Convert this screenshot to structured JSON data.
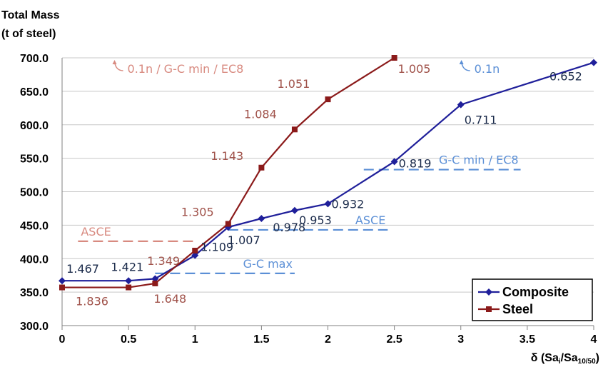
{
  "colors": {
    "composite": "#1f1f9a",
    "steel": "#8b1a1a",
    "composite_label": "#1a2a4a",
    "steel_label": "#a0524a",
    "composite_annotation": "#5b8fd6",
    "steel_annotation": "#d88a80",
    "grid": "#c8c8c8"
  },
  "chart_data": {
    "type": "line",
    "ylabel_line1": "Total Mass",
    "ylabel_line2": "(t of steel)",
    "xlabel": "δ (Sa",
    "xlabel_sub1": "i",
    "xlabel_mid": "/Sa",
    "xlabel_sub2": "10/50",
    "xlabel_end": ")",
    "xlim": [
      0,
      4
    ],
    "ylim": [
      300,
      700
    ],
    "grid": true,
    "legend_position": "bottom-right",
    "x_ticks": [
      "0",
      "0.5",
      "1",
      "1.5",
      "2",
      "2.5",
      "3",
      "3.5",
      "4"
    ],
    "y_ticks": [
      "300.0",
      "350.0",
      "400.0",
      "450.0",
      "500.0",
      "550.0",
      "600.0",
      "650.0",
      "700.0"
    ],
    "series": [
      {
        "name": "Composite",
        "marker": "diamond",
        "x": [
          0,
          0.5,
          0.7,
          1,
          1.25,
          1.5,
          1.75,
          2,
          2.5,
          3,
          4
        ],
        "y": [
          367,
          367,
          370,
          405,
          447,
          460,
          472,
          482,
          545,
          630,
          693
        ],
        "labels": [
          {
            "text": "1.467",
            "x": 0.5,
            "y": 367
          },
          {
            "text": "1.421",
            "x": 0.7,
            "y": 370
          },
          {
            "text": "1.109",
            "x": 1,
            "y": 405
          },
          {
            "text": "1.007",
            "x": 1.25,
            "y": 447
          },
          {
            "text": "0.978",
            "x": 1.5,
            "y": 460
          },
          {
            "text": "0.953",
            "x": 1.75,
            "y": 472
          },
          {
            "text": "0.932",
            "x": 2,
            "y": 482
          },
          {
            "text": "0.819",
            "x": 2.5,
            "y": 545
          },
          {
            "text": "0.711",
            "x": 3,
            "y": 630
          },
          {
            "text": "0.652",
            "x": 4,
            "y": 693
          }
        ]
      },
      {
        "name": "Steel",
        "marker": "square",
        "x": [
          0,
          0.5,
          0.7,
          1,
          1.25,
          1.5,
          1.75,
          2,
          2.5
        ],
        "y": [
          357,
          357,
          363,
          412,
          452,
          536,
          593,
          638,
          700
        ],
        "labels": [
          {
            "text": "1.836",
            "x": 0.5,
            "y": 357
          },
          {
            "text": "1.648",
            "x": 0.7,
            "y": 363
          },
          {
            "text": "1.349",
            "x": 1,
            "y": 412
          },
          {
            "text": "1.305",
            "x": 1.25,
            "y": 452
          },
          {
            "text": "1.143",
            "x": 1.5,
            "y": 536
          },
          {
            "text": "1.084",
            "x": 1.75,
            "y": 593
          },
          {
            "text": "1.051",
            "x": 2,
            "y": 638
          },
          {
            "text": "1.005",
            "x": 2.5,
            "y": 700
          }
        ]
      }
    ],
    "reference_lines": [
      {
        "label": "G-C max",
        "series": "Composite",
        "x0": 0.7,
        "x1": 1.75,
        "y": 378
      },
      {
        "label": "ASCE",
        "series": "Composite",
        "x0": 1.25,
        "x1": 2.45,
        "y": 443
      },
      {
        "label": "G-C min / EC8",
        "series": "Composite",
        "x0": 2.27,
        "x1": 3.45,
        "y": 533
      },
      {
        "label": "ASCE",
        "series": "Steel",
        "x0": 0.12,
        "x1": 1.0,
        "y": 426
      }
    ],
    "annotations": [
      {
        "text": "0.1n / G-C min / EC8",
        "series": "Steel",
        "x": 0.47,
        "y": 683
      },
      {
        "text": "0.1n",
        "series": "Composite",
        "x": 3.08,
        "y": 683
      }
    ]
  }
}
